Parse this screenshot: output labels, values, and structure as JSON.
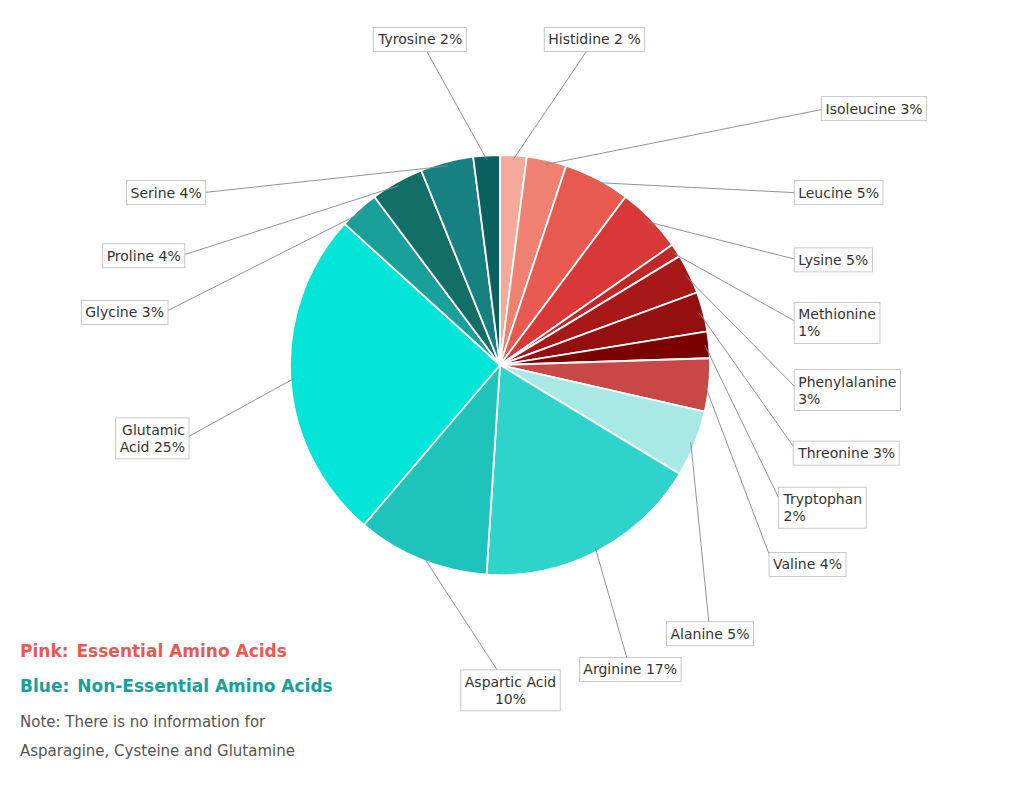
{
  "chart_data": {
    "type": "pie",
    "values": [
      2,
      3,
      5,
      5,
      1,
      3,
      3,
      2,
      4,
      5,
      17,
      10,
      25,
      3,
      4,
      4,
      2
    ],
    "value_labels": [
      "Histidine 2 %",
      "Isoleucine 3%",
      "Leucine 5%",
      "Lysine 5%",
      "Methionine\n1%",
      "Phenylalanine\n3%",
      "Threonine 3%",
      "Tryptophan\n2%",
      "Valine 4%",
      "Alanine 5%",
      "Arginine 17%",
      "Aspartic Acid\n10%",
      "Glutamic\nAcid 25%",
      "Glycine 3%",
      "Proline 4%",
      "Serine 4%",
      "Tyrosine 2%"
    ],
    "colors": [
      "#F5A99A",
      "#F08070",
      "#E85A50",
      "#D93838",
      "#C02828",
      "#A81818",
      "#941010",
      "#7B0000",
      "#C84848",
      "#A8E8E5",
      "#2ED4CC",
      "#1EC4BC",
      "#00E5D8",
      "#1AA09A",
      "#146E68",
      "#178080",
      "#0D6060"
    ],
    "annotations": [
      {
        "text": "Pink:",
        "color": "#E85A50"
      },
      {
        "text": "Essential Amino Acids",
        "color": "#E85A50"
      },
      {
        "text": "Blue:",
        "color": "#1AA09A"
      },
      {
        "text": "Non-Essential Amino Acids",
        "color": "#1AA09A"
      },
      {
        "text": "Note: There is no information for",
        "color": "#555555"
      },
      {
        "text": "Asparagine, Cysteine and Glutamine",
        "color": "#555555"
      }
    ]
  }
}
